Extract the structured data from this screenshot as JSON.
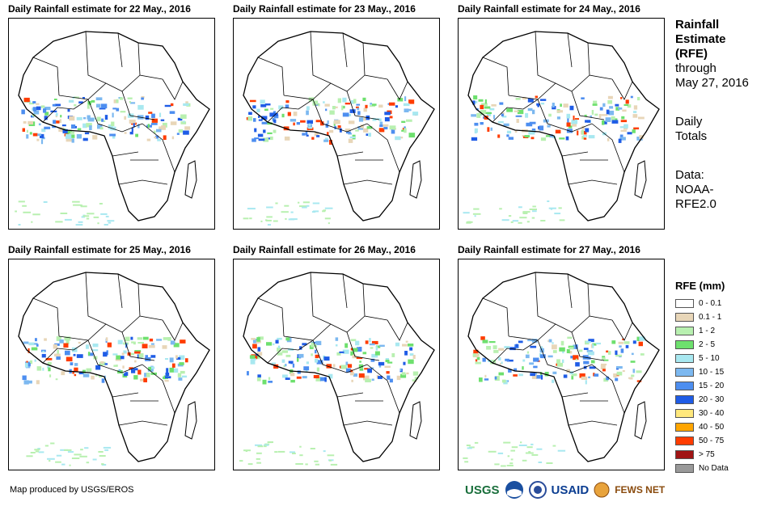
{
  "panels": [
    {
      "title": "Daily Rainfall estimate for 22 May., 2016"
    },
    {
      "title": "Daily Rainfall estimate for 23 May., 2016"
    },
    {
      "title": "Daily Rainfall estimate for 24 May., 2016"
    },
    {
      "title": "Daily Rainfall estimate for 25 May., 2016"
    },
    {
      "title": "Daily Rainfall estimate for 26 May., 2016"
    },
    {
      "title": "Daily Rainfall estimate for 27 May., 2016"
    }
  ],
  "side": {
    "heading_line1": "Rainfall",
    "heading_line2": "Estimate",
    "heading_line3": "(RFE)",
    "through": "through",
    "date": "May 27, 2016",
    "totals_line1": "Daily",
    "totals_line2": "Totals",
    "data_line1": "Data:",
    "data_line2": "NOAA-",
    "data_line3": "RFE2.0"
  },
  "legend": {
    "title": "RFE (mm)",
    "items": [
      {
        "label": "0 - 0.1",
        "color": "#ffffff"
      },
      {
        "label": "0.1 - 1",
        "color": "#e8d6b8"
      },
      {
        "label": "1 - 2",
        "color": "#b8f0b0"
      },
      {
        "label": "2 - 5",
        "color": "#6ee06e"
      },
      {
        "label": "5 - 10",
        "color": "#a8e8f0"
      },
      {
        "label": "10 - 15",
        "color": "#7cb8f0"
      },
      {
        "label": "15 - 20",
        "color": "#4d8ef0"
      },
      {
        "label": "20 - 30",
        "color": "#1f5ce6"
      },
      {
        "label": "30 - 40",
        "color": "#ffe87c"
      },
      {
        "label": "40 - 50",
        "color": "#ffa500"
      },
      {
        "label": "50 - 75",
        "color": "#ff3c00"
      },
      {
        "label": "> 75",
        "color": "#a01414"
      },
      {
        "label": "No Data",
        "color": "#999999"
      }
    ]
  },
  "credit": "Map produced by USGS/EROS",
  "logos": {
    "usgs": "USGS",
    "usaid": "USAID",
    "fewsnet": "FEWS NET"
  }
}
